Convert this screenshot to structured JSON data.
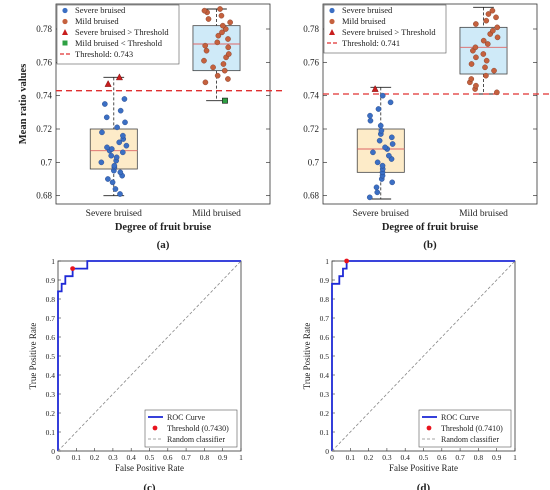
{
  "chart_data": [
    {
      "panel_label": "(a)",
      "type": "box",
      "xlabel": "Degree of fruit bruise",
      "ylabel": "Mean ratio values",
      "ylim": [
        0.675,
        0.795
      ],
      "yticks": [
        "0.68",
        "0.7",
        "0.72",
        "0.74",
        "0.76",
        "0.78"
      ],
      "categories": [
        "Severe bruised",
        "Mild bruised"
      ],
      "threshold": 0.743,
      "legend": {
        "position": "top-left",
        "entries": [
          "Severe bruised",
          "Mild bruised",
          "Severe bruised > Threshold",
          "Mild bruised < Threshold",
          "Threshold: 0.743"
        ]
      },
      "colors": {
        "severe_box": "#fdebc8",
        "mild_box": "#cfeaf8",
        "severe_point": "#3b6fc4",
        "mild_point": "#c5613e",
        "threshold": "#e03030",
        "flag_high": "#c81e1e",
        "flag_low": "#2ea043"
      },
      "boxes": [
        {
          "name": "Severe bruised",
          "q1": 0.696,
          "median": 0.707,
          "q3": 0.72,
          "whisker_low": 0.68,
          "whisker_high": 0.751
        },
        {
          "name": "Mild bruised",
          "q1": 0.755,
          "median": 0.771,
          "q3": 0.782,
          "whisker_low": 0.737,
          "whisker_high": 0.792
        }
      ],
      "series": [
        {
          "name": "Severe bruised",
          "values": [
            0.681,
            0.684,
            0.688,
            0.69,
            0.692,
            0.694,
            0.695,
            0.697,
            0.698,
            0.7,
            0.701,
            0.703,
            0.704,
            0.706,
            0.707,
            0.708,
            0.709,
            0.71,
            0.712,
            0.714,
            0.716,
            0.718,
            0.721,
            0.724,
            0.727,
            0.731,
            0.735,
            0.738
          ]
        },
        {
          "name": "Mild bruised",
          "values": [
            0.748,
            0.75,
            0.752,
            0.755,
            0.757,
            0.759,
            0.761,
            0.763,
            0.765,
            0.767,
            0.769,
            0.77,
            0.772,
            0.774,
            0.776,
            0.778,
            0.78,
            0.782,
            0.784,
            0.786,
            0.788,
            0.79,
            0.791,
            0.792
          ]
        },
        {
          "name": "Severe bruised > Threshold",
          "values": [
            0.747,
            0.751
          ]
        },
        {
          "name": "Mild bruised < Threshold",
          "values": [
            0.737
          ]
        }
      ]
    },
    {
      "panel_label": "(b)",
      "type": "box",
      "xlabel": "Degree of fruit bruise",
      "ylabel": "",
      "ylim": [
        0.675,
        0.795
      ],
      "yticks": [
        "0.68",
        "0.7",
        "0.72",
        "0.74",
        "0.76",
        "0.78"
      ],
      "categories": [
        "Severe bruised",
        "Mild bruised"
      ],
      "threshold": 0.741,
      "legend": {
        "position": "top-left",
        "entries": [
          "Severe bruised",
          "Mild bruised",
          "Severe bruised > Threshold",
          "Threshold: 0.741"
        ]
      },
      "colors": {
        "severe_box": "#fdebc8",
        "mild_box": "#cfeaf8",
        "severe_point": "#3b6fc4",
        "mild_point": "#c5613e",
        "threshold": "#e03030",
        "flag_high": "#c81e1e"
      },
      "boxes": [
        {
          "name": "Severe bruised",
          "q1": 0.694,
          "median": 0.708,
          "q3": 0.72,
          "whisker_low": 0.678,
          "whisker_high": 0.745
        },
        {
          "name": "Mild bruised",
          "q1": 0.753,
          "median": 0.769,
          "q3": 0.781,
          "whisker_low": 0.741,
          "whisker_high": 0.793
        }
      ],
      "series": [
        {
          "name": "Severe bruised",
          "values": [
            0.679,
            0.682,
            0.685,
            0.688,
            0.69,
            0.692,
            0.694,
            0.696,
            0.698,
            0.7,
            0.702,
            0.704,
            0.706,
            0.708,
            0.709,
            0.711,
            0.713,
            0.715,
            0.717,
            0.719,
            0.722,
            0.725,
            0.728,
            0.732,
            0.736,
            0.74
          ]
        },
        {
          "name": "Mild bruised",
          "values": [
            0.742,
            0.744,
            0.746,
            0.748,
            0.75,
            0.752,
            0.755,
            0.757,
            0.759,
            0.761,
            0.763,
            0.765,
            0.767,
            0.769,
            0.771,
            0.773,
            0.775,
            0.777,
            0.779,
            0.781,
            0.783,
            0.785,
            0.787,
            0.789,
            0.791
          ]
        },
        {
          "name": "Severe bruised > Threshold",
          "values": [
            0.744
          ]
        }
      ]
    },
    {
      "panel_label": "(c)",
      "type": "line",
      "xlabel": "False Positive Rate",
      "ylabel": "True Positive Rate",
      "xlim": [
        0,
        1
      ],
      "ylim": [
        0,
        1
      ],
      "xticks": [
        "0",
        "0.1",
        "0.2",
        "0.3",
        "0.4",
        "0.5",
        "0.6",
        "0.7",
        "0.8",
        "0.9",
        "1"
      ],
      "yticks": [
        "0",
        "0.1",
        "0.2",
        "0.3",
        "0.4",
        "0.5",
        "0.6",
        "0.7",
        "0.8",
        "0.9",
        "1"
      ],
      "legend": {
        "position": "bottom-right",
        "entries": [
          "ROC Curve",
          "Threshold (0.7430)",
          "Random classifier"
        ]
      },
      "colors": {
        "roc": "#1f2ad6",
        "threshold": "#e8141e",
        "random": "#888888"
      },
      "series": [
        {
          "name": "ROC Curve",
          "x": [
            0,
            0,
            0.02,
            0.02,
            0.04,
            0.04,
            0.08,
            0.08,
            0.12,
            0.12,
            0.16,
            0.16,
            1
          ],
          "y": [
            0,
            0.84,
            0.84,
            0.88,
            0.88,
            0.92,
            0.92,
            0.96,
            0.96,
            0.96,
            0.96,
            1,
            1
          ]
        },
        {
          "name": "Threshold (0.7430)",
          "x": [
            0.08
          ],
          "y": [
            0.96
          ]
        },
        {
          "name": "Random classifier",
          "x": [
            0,
            1
          ],
          "y": [
            0,
            1
          ]
        }
      ]
    },
    {
      "panel_label": "(d)",
      "type": "line",
      "xlabel": "False Positive Rate",
      "ylabel": "True Positive Rate",
      "xlim": [
        0,
        1
      ],
      "ylim": [
        0,
        1
      ],
      "xticks": [
        "0",
        "0.1",
        "0.2",
        "0.3",
        "0.4",
        "0.5",
        "0.6",
        "0.7",
        "0.8",
        "0.9",
        "1"
      ],
      "yticks": [
        "0",
        "0.1",
        "0.2",
        "0.3",
        "0.4",
        "0.5",
        "0.6",
        "0.7",
        "0.8",
        "0.9",
        "1"
      ],
      "legend": {
        "position": "bottom-right",
        "entries": [
          "ROC Curve",
          "Threshold (0.7410)",
          "Random classifier"
        ]
      },
      "colors": {
        "roc": "#1f2ad6",
        "threshold": "#e8141e",
        "random": "#888888"
      },
      "series": [
        {
          "name": "ROC Curve",
          "x": [
            0,
            0,
            0.04,
            0.04,
            0.06,
            0.06,
            0.08,
            0.08,
            1
          ],
          "y": [
            0,
            0.88,
            0.88,
            0.92,
            0.92,
            0.96,
            0.96,
            1,
            1
          ]
        },
        {
          "name": "Threshold (0.7410)",
          "x": [
            0.08
          ],
          "y": [
            1
          ]
        },
        {
          "name": "Random classifier",
          "x": [
            0,
            1
          ],
          "y": [
            0,
            1
          ]
        }
      ]
    }
  ]
}
